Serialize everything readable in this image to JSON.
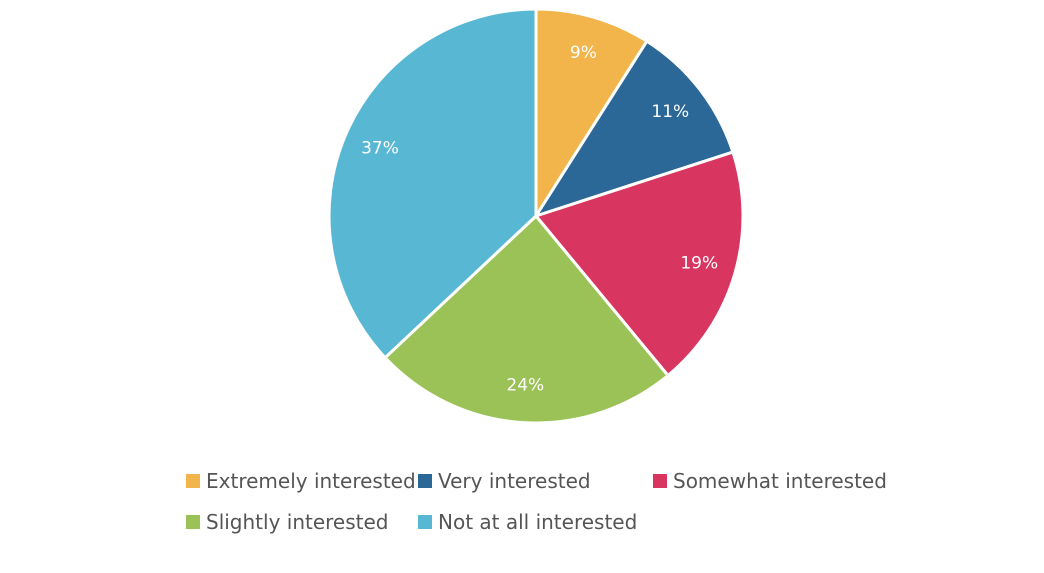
{
  "chart_data": {
    "type": "pie",
    "categories": [
      "Extremely interested",
      "Very interested",
      "Somewhat interested",
      "Slightly interested",
      "Not at all interested"
    ],
    "values": [
      9,
      11,
      19,
      24,
      37
    ],
    "value_labels": [
      "9%",
      "11%",
      "19%",
      "24%",
      "37%"
    ],
    "colors": [
      "#f2b54c",
      "#2b6797",
      "#d93561",
      "#9bc256",
      "#58b8d4"
    ],
    "start_angle_deg": 0,
    "direction": "clockwise",
    "legend": {
      "placement": "bottom",
      "columns": 3
    },
    "title": "",
    "xlabel": "",
    "ylabel": ""
  }
}
